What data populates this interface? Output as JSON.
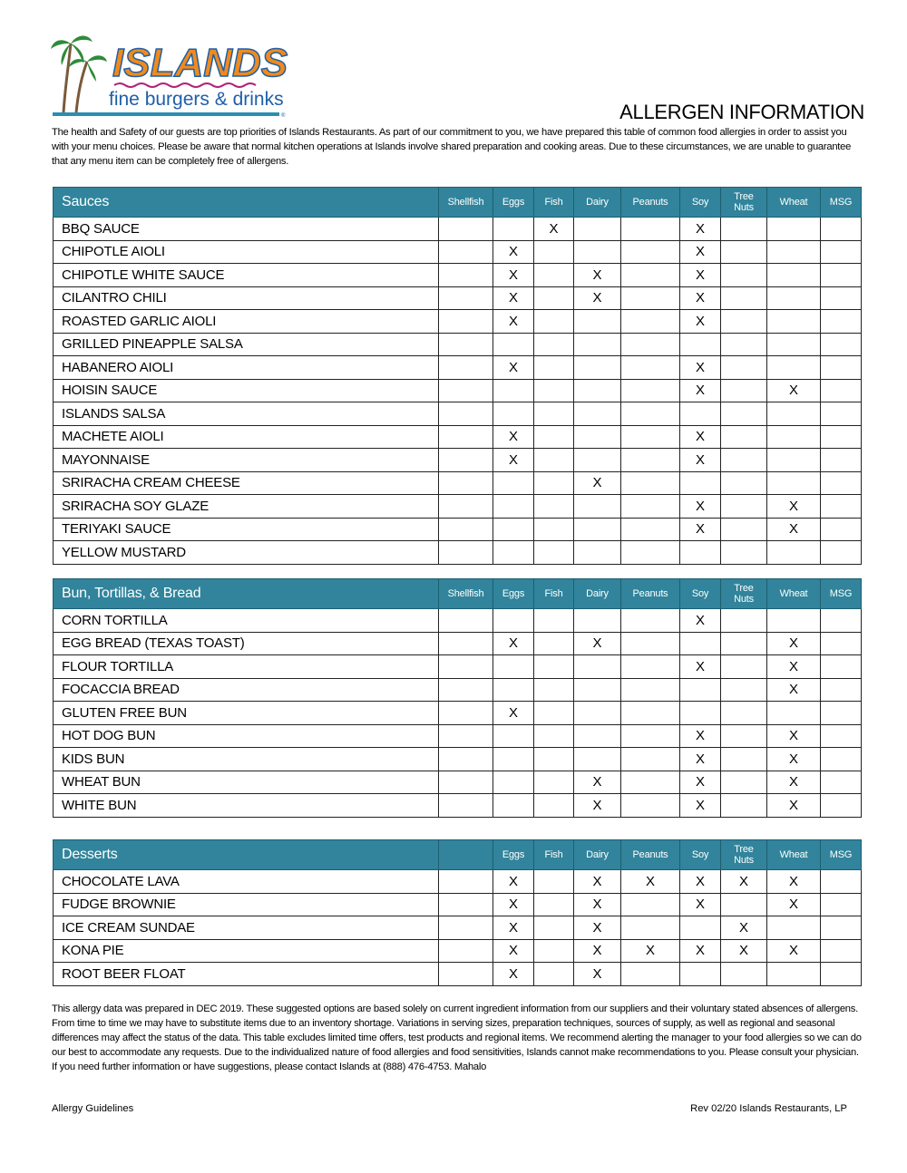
{
  "logo": {
    "brand": "ISLANDS",
    "tagline": "fine burgers & drinks",
    "colors": {
      "brand_orange": "#f08a1c",
      "brand_blue": "#1f5fa8",
      "palm_green": "#2e8b3a"
    }
  },
  "header": {
    "title": "ALLERGEN INFORMATION"
  },
  "intro": "The health and Safety of our guests are top priorities of Islands Restaurants. As part of our commitment to you, we have prepared this table of common food allergies in order to assist you with your menu choices. Please be aware that normal kitchen operations at Islands involve shared preparation and cooking areas. Due to these circumstances, we are unable to guarantee that any menu item can be completely free of allergens.",
  "header_color": "#31849b",
  "tables": [
    {
      "title": "Sauces",
      "columns": [
        "Shellfish",
        "Eggs",
        "Fish",
        "Dairy",
        "Peanuts",
        "Soy",
        "Tree Nuts",
        "Wheat",
        "MSG"
      ],
      "rows": [
        {
          "name": "BBQ SAUCE",
          "marks": [
            "",
            "",
            "X",
            "",
            "",
            "X",
            "",
            "",
            ""
          ]
        },
        {
          "name": "CHIPOTLE AIOLI",
          "marks": [
            "",
            "X",
            "",
            "",
            "",
            "X",
            "",
            "",
            ""
          ]
        },
        {
          "name": "CHIPOTLE WHITE SAUCE",
          "marks": [
            "",
            "X",
            "",
            "X",
            "",
            "X",
            "",
            "",
            ""
          ]
        },
        {
          "name": "CILANTRO CHILI",
          "marks": [
            "",
            "X",
            "",
            "X",
            "",
            "X",
            "",
            "",
            ""
          ]
        },
        {
          "name": "ROASTED GARLIC AIOLI",
          "marks": [
            "",
            "X",
            "",
            "",
            "",
            "X",
            "",
            "",
            ""
          ]
        },
        {
          "name": "GRILLED PINEAPPLE SALSA",
          "marks": [
            "",
            "",
            "",
            "",
            "",
            "",
            "",
            "",
            ""
          ]
        },
        {
          "name": "HABANERO AIOLI",
          "marks": [
            "",
            "X",
            "",
            "",
            "",
            "X",
            "",
            "",
            ""
          ]
        },
        {
          "name": "HOISIN SAUCE",
          "marks": [
            "",
            "",
            "",
            "",
            "",
            "X",
            "",
            "X",
            ""
          ]
        },
        {
          "name": "ISLANDS SALSA",
          "marks": [
            "",
            "",
            "",
            "",
            "",
            "",
            "",
            "",
            ""
          ]
        },
        {
          "name": "MACHETE AIOLI",
          "marks": [
            "",
            "X",
            "",
            "",
            "",
            "X",
            "",
            "",
            ""
          ]
        },
        {
          "name": "MAYONNAISE",
          "marks": [
            "",
            "X",
            "",
            "",
            "",
            "X",
            "",
            "",
            ""
          ]
        },
        {
          "name": "SRIRACHA CREAM CHEESE",
          "marks": [
            "",
            "",
            "",
            "X",
            "",
            "",
            "",
            "",
            ""
          ]
        },
        {
          "name": "SRIRACHA SOY GLAZE",
          "marks": [
            "",
            "",
            "",
            "",
            "",
            "X",
            "",
            "X",
            ""
          ]
        },
        {
          "name": "TERIYAKI SAUCE",
          "marks": [
            "",
            "",
            "",
            "",
            "",
            "X",
            "",
            "X",
            ""
          ]
        },
        {
          "name": "YELLOW MUSTARD",
          "marks": [
            "",
            "",
            "",
            "",
            "",
            "",
            "",
            "",
            ""
          ]
        }
      ]
    },
    {
      "title": "Bun, Tortillas, & Bread",
      "columns": [
        "Shellfish",
        "Eggs",
        "Fish",
        "Dairy",
        "Peanuts",
        "Soy",
        "Tree Nuts",
        "Wheat",
        "MSG"
      ],
      "rows": [
        {
          "name": "CORN TORTILLA",
          "marks": [
            "",
            "",
            "",
            "",
            "",
            "X",
            "",
            "",
            ""
          ]
        },
        {
          "name": "EGG BREAD (TEXAS TOAST)",
          "marks": [
            "",
            "X",
            "",
            "X",
            "",
            "",
            "",
            "X",
            ""
          ]
        },
        {
          "name": "FLOUR TORTILLA",
          "marks": [
            "",
            "",
            "",
            "",
            "",
            "X",
            "",
            "X",
            ""
          ]
        },
        {
          "name": "FOCACCIA BREAD",
          "marks": [
            "",
            "",
            "",
            "",
            "",
            "",
            "",
            "X",
            ""
          ]
        },
        {
          "name": "GLUTEN FREE BUN",
          "marks": [
            "",
            "X",
            "",
            "",
            "",
            "",
            "",
            "",
            ""
          ]
        },
        {
          "name": "HOT DOG BUN",
          "marks": [
            "",
            "",
            "",
            "",
            "",
            "X",
            "",
            "X",
            ""
          ]
        },
        {
          "name": "KIDS BUN",
          "marks": [
            "",
            "",
            "",
            "",
            "",
            "X",
            "",
            "X",
            ""
          ]
        },
        {
          "name": "WHEAT BUN",
          "marks": [
            "",
            "",
            "",
            "X",
            "",
            "X",
            "",
            "X",
            ""
          ]
        },
        {
          "name": "WHITE BUN",
          "marks": [
            "",
            "",
            "",
            "X",
            "",
            "X",
            "",
            "X",
            ""
          ]
        }
      ]
    },
    {
      "title": "Desserts",
      "columns": [
        "",
        "Eggs",
        "Fish",
        "Dairy",
        "Peanuts",
        "Soy",
        "Tree Nuts",
        "Wheat",
        "MSG"
      ],
      "rows": [
        {
          "name": "CHOCOLATE LAVA",
          "marks": [
            "",
            "X",
            "",
            "X",
            "X",
            "X",
            "X",
            "X",
            ""
          ]
        },
        {
          "name": "FUDGE BROWNIE",
          "marks": [
            "",
            "X",
            "",
            "X",
            "",
            "X",
            "",
            "X",
            ""
          ]
        },
        {
          "name": "ICE CREAM SUNDAE",
          "marks": [
            "",
            "X",
            "",
            "X",
            "",
            "",
            "X",
            "",
            ""
          ]
        },
        {
          "name": "KONA PIE",
          "marks": [
            "",
            "X",
            "",
            "X",
            "X",
            "X",
            "X",
            "X",
            ""
          ]
        },
        {
          "name": "ROOT BEER FLOAT",
          "marks": [
            "",
            "X",
            "",
            "X",
            "",
            "",
            "",
            "",
            ""
          ]
        }
      ]
    }
  ],
  "footer": {
    "disclaimer": "This allergy data was prepared in DEC 2019. These suggested options are based solely on current ingredient information from our suppliers and their voluntary stated absences of allergens. From time to time we may have to substitute items due to an inventory shortage. Variations in serving sizes, preparation techniques, sources of supply, as well as regional and seasonal differences may affect the status of the data. This table excludes limited time offers, test products and regional items. We recommend alerting the manager to your food allergies so we can do our best to accommodate any requests. Due to the individualized nature of food allergies and food sensitivities, Islands cannot make recommendations to you. Please consult your physician. If you need further information or have suggestions, please contact Islands at (888) 476-4753. Mahalo",
    "left": "Allergy Guidelines",
    "right": "Rev 02/20 Islands Restaurants, LP"
  }
}
